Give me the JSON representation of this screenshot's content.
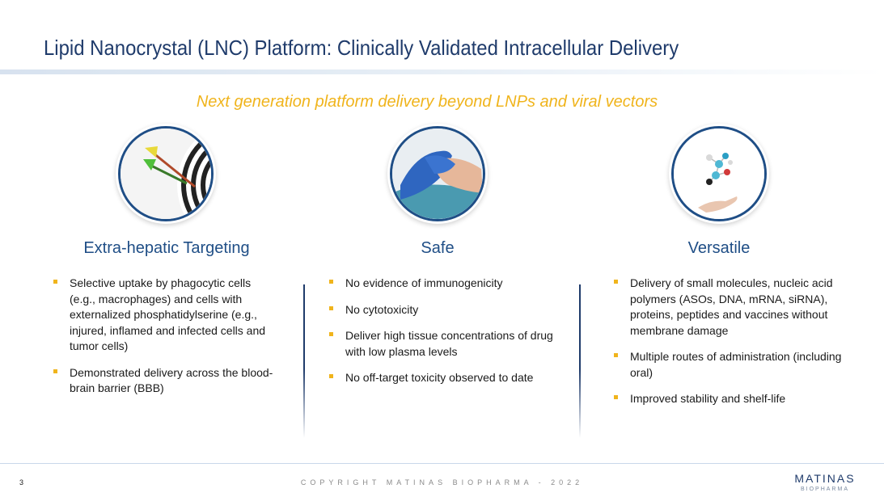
{
  "slide": {
    "title": "Lipid Nanocrystal (LNC) Platform: Clinically Validated Intracellular Delivery",
    "subtitle": "Next generation platform delivery beyond LNPs and viral vectors",
    "accent_color": "#f0b41c",
    "title_color": "#1f3b6b"
  },
  "columns": [
    {
      "heading": "Extra-hepatic Targeting",
      "icon": "dart-target-icon",
      "bullets": [
        "Selective uptake by phagocytic cells (e.g., macrophages) and cells with externalized phosphatidylserine (e.g., injured, inflamed and infected cells and tumor cells)",
        "Demonstrated delivery across the blood-brain barrier (BBB)"
      ]
    },
    {
      "heading": "Safe",
      "icon": "gloved-hand-icon",
      "bullets": [
        "No evidence of immunogenicity",
        "No cytotoxicity",
        "Deliver high tissue concentrations of drug with low plasma levels",
        "No off-target toxicity observed to date"
      ]
    },
    {
      "heading": "Versatile",
      "icon": "molecule-hand-icon",
      "bullets": [
        "Delivery of small molecules, nucleic acid polymers (ASOs, DNA, mRNA, siRNA), proteins, peptides and vaccines without membrane damage",
        "Multiple routes of administration (including oral)",
        "Improved stability and shelf-life"
      ]
    }
  ],
  "footer": {
    "page_number": "3",
    "copyright": "COPYRIGHT MATINAS BIOPHARMA - 2022",
    "logo_main": "MATINAS",
    "logo_sub": "BIOPHARMA"
  }
}
